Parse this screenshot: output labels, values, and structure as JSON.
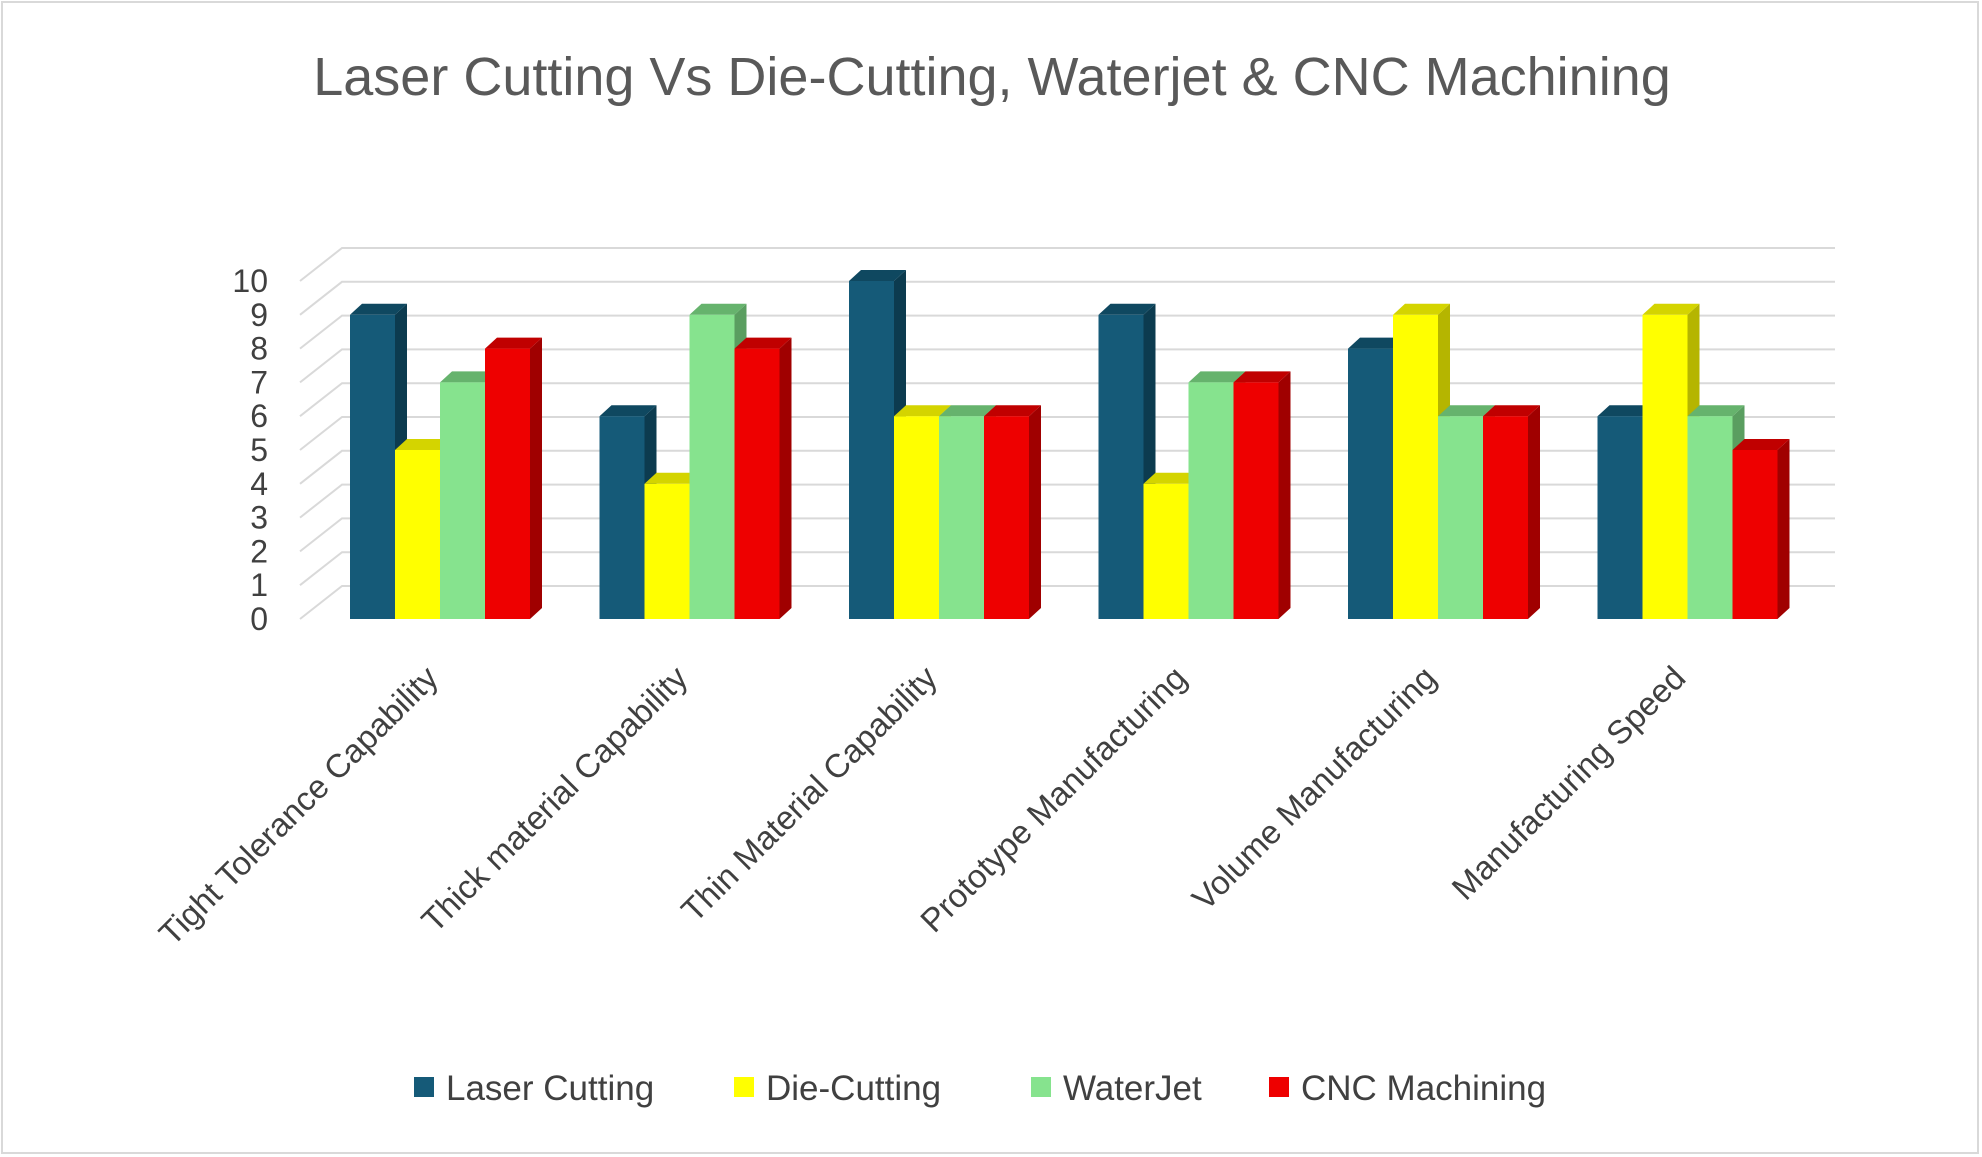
{
  "chart_data": {
    "type": "bar",
    "title": "Laser Cutting Vs Die-Cutting, Waterjet & CNC Machining",
    "categories": [
      "Tight Tolerance Capability",
      "Thick material Capability",
      "Thin Material Capability",
      "Prototype Manufacturing",
      "Volume Manufacturing",
      "Manufacturing Speed"
    ],
    "series": [
      {
        "name": "Laser Cutting",
        "values": [
          9,
          6,
          10,
          9,
          8,
          6
        ],
        "color": "#155a78",
        "top_color": "#0f4860",
        "side_color": "#0c3b4f"
      },
      {
        "name": "Die-Cutting",
        "values": [
          5,
          4,
          6,
          4,
          9,
          9
        ],
        "color": "#ffff00",
        "top_color": "#d4d400",
        "side_color": "#b5b500"
      },
      {
        "name": "WaterJet",
        "values": [
          7,
          9,
          6,
          7,
          6,
          6
        ],
        "color": "#86e38e",
        "top_color": "#66b36d",
        "side_color": "#5a9e60"
      },
      {
        "name": "CNC Machining",
        "values": [
          8,
          8,
          6,
          7,
          6,
          5
        ],
        "color": "#ee0000",
        "top_color": "#c00000",
        "side_color": "#a00000"
      }
    ],
    "y_ticks": [
      "0",
      "1",
      "2",
      "3",
      "4",
      "5",
      "6",
      "7",
      "8",
      "9",
      "10"
    ],
    "ylim": [
      0,
      10
    ],
    "grid": true,
    "legend_position": "bottom",
    "projection": "3d-clustered-column"
  }
}
